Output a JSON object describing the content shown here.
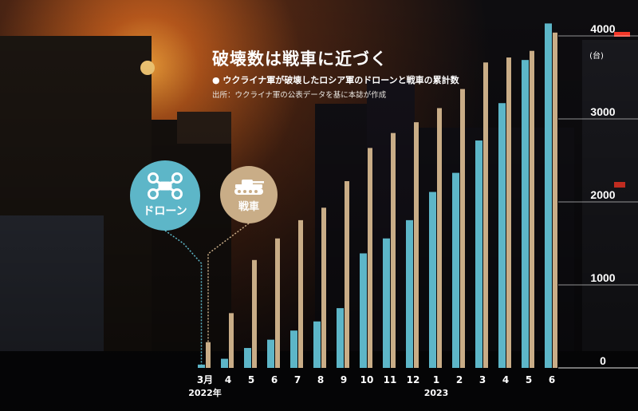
{
  "header": {
    "title": "破壊数は戦車に近づく",
    "subtitle": "● ウクライナ軍が破壊したロシア軍のドローンと戦車の累計数",
    "source": "出所：ウクライナ軍の公表データを基に本誌が作成"
  },
  "legend_badges": {
    "drone_label": "ドローン",
    "tank_label": "戦車"
  },
  "colors": {
    "drone": "#5db6c8",
    "tank": "#c9ad87"
  },
  "icons": [
    "drone-icon",
    "tank-icon"
  ],
  "chart_data": {
    "type": "bar",
    "title": "破壊数は戦車に近づく",
    "categories": [
      "3月",
      "4",
      "5",
      "6",
      "7",
      "8",
      "9",
      "10",
      "11",
      "12",
      "1",
      "2",
      "3",
      "4",
      "5",
      "6"
    ],
    "year_labels": [
      {
        "label": "2022年",
        "at": "3月"
      },
      {
        "label": "2023",
        "at": "1"
      }
    ],
    "y_unit": "(台)",
    "ylim": [
      0,
      4000
    ],
    "yticks": [
      0,
      1000,
      2000,
      3000,
      4000
    ],
    "grid": true,
    "series": [
      {
        "name": "ドローン",
        "values": [
          40,
          110,
          240,
          340,
          450,
          560,
          720,
          1380,
          1560,
          1780,
          2120,
          2350,
          2740,
          3190,
          3710,
          4150
        ]
      },
      {
        "name": "戦車",
        "values": [
          310,
          660,
          1300,
          1560,
          1780,
          1930,
          2250,
          2650,
          2830,
          2960,
          3130,
          3360,
          3680,
          3740,
          3820,
          4040
        ]
      }
    ]
  }
}
